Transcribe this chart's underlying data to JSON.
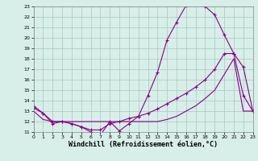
{
  "background_color": "#d8eee8",
  "grid_color": "#a8c8c0",
  "line_color": "#880088",
  "xlabel": "Windchill (Refroidissement éolien,°C)",
  "xlabel_fontsize": 6.0,
  "xlim": [
    0,
    23
  ],
  "ylim": [
    11,
    23
  ],
  "yticks": [
    11,
    12,
    13,
    14,
    15,
    16,
    17,
    18,
    19,
    20,
    21,
    22,
    23
  ],
  "xticks": [
    0,
    1,
    2,
    3,
    4,
    5,
    6,
    7,
    8,
    9,
    10,
    11,
    12,
    13,
    14,
    15,
    16,
    17,
    18,
    19,
    20,
    21,
    22,
    23
  ],
  "s1_x": [
    0,
    1,
    2,
    3,
    4,
    5,
    6,
    7,
    8,
    9,
    10,
    11,
    12,
    13,
    14,
    15,
    16,
    17,
    18,
    19,
    20,
    21,
    22,
    23
  ],
  "s1_y": [
    13.5,
    12.8,
    12.0,
    12.0,
    11.8,
    11.5,
    11.0,
    10.7,
    12.0,
    11.1,
    11.8,
    12.5,
    14.5,
    16.7,
    19.8,
    21.5,
    23.1,
    23.2,
    23.0,
    22.2,
    20.3,
    18.5,
    14.5,
    13.0
  ],
  "s2_x": [
    0,
    1,
    2,
    3,
    4,
    5,
    6,
    7,
    8,
    9,
    10,
    11,
    12,
    13,
    14,
    15,
    16,
    17,
    18,
    19,
    20,
    21,
    22,
    23
  ],
  "s2_y": [
    13.3,
    12.8,
    11.8,
    12.0,
    11.8,
    11.5,
    11.2,
    11.2,
    11.8,
    12.0,
    12.3,
    12.5,
    12.8,
    13.2,
    13.7,
    14.2,
    14.7,
    15.3,
    16.0,
    17.0,
    18.5,
    18.5,
    17.2,
    13.0
  ],
  "s3_x": [
    0,
    1,
    2,
    3,
    4,
    5,
    6,
    7,
    8,
    9,
    10,
    11,
    12,
    13,
    14,
    15,
    16,
    17,
    18,
    19,
    20,
    21,
    22,
    23
  ],
  "s3_y": [
    13.0,
    12.2,
    12.0,
    12.0,
    12.0,
    12.0,
    12.0,
    12.0,
    12.0,
    12.0,
    12.0,
    12.0,
    12.0,
    12.0,
    12.2,
    12.5,
    13.0,
    13.5,
    14.2,
    15.0,
    16.5,
    18.0,
    13.0,
    13.0
  ]
}
